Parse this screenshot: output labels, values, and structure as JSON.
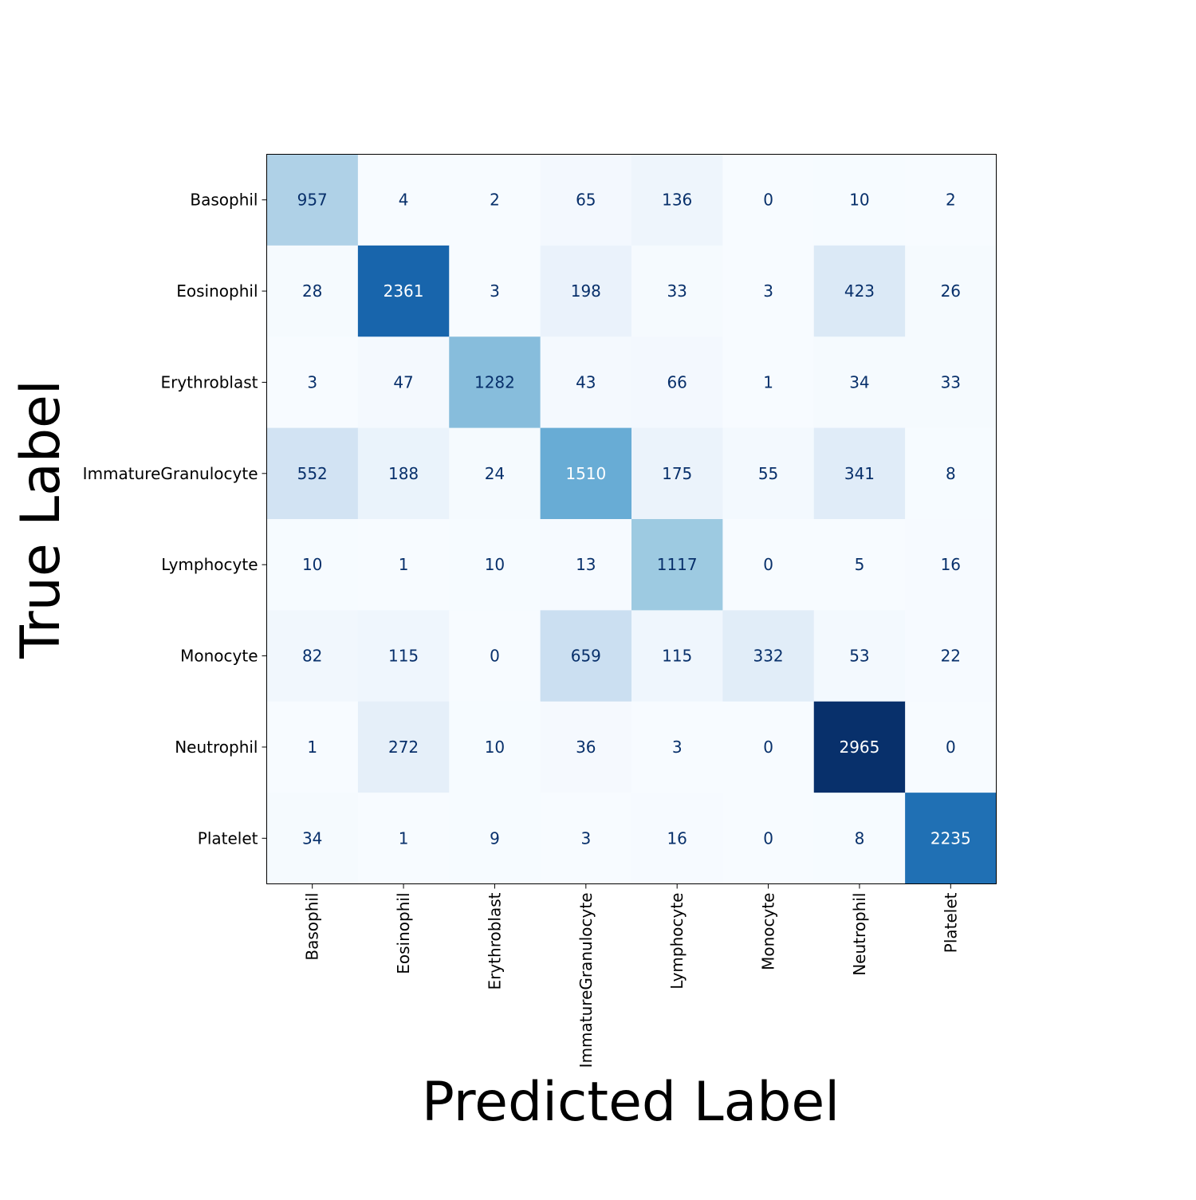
{
  "chart_data": {
    "type": "heatmap",
    "title": "",
    "xlabel": "Predicted Label",
    "ylabel": "True Label",
    "x_categories": [
      "Basophil",
      "Eosinophil",
      "Erythroblast",
      "ImmatureGranulocyte",
      "Lymphocyte",
      "Monocyte",
      "Neutrophil",
      "Platelet"
    ],
    "y_categories": [
      "Basophil",
      "Eosinophil",
      "Erythroblast",
      "ImmatureGranulocyte",
      "Lymphocyte",
      "Monocyte",
      "Neutrophil",
      "Platelet"
    ],
    "values": [
      [
        957,
        4,
        2,
        65,
        136,
        0,
        10,
        2
      ],
      [
        28,
        2361,
        3,
        198,
        33,
        3,
        423,
        26
      ],
      [
        3,
        47,
        1282,
        43,
        66,
        1,
        34,
        33
      ],
      [
        552,
        188,
        24,
        1510,
        175,
        55,
        341,
        8
      ],
      [
        10,
        1,
        10,
        13,
        1117,
        0,
        5,
        16
      ],
      [
        82,
        115,
        0,
        659,
        115,
        332,
        53,
        22
      ],
      [
        1,
        272,
        10,
        36,
        3,
        0,
        2965,
        0
      ],
      [
        34,
        1,
        9,
        3,
        16,
        0,
        8,
        2235
      ]
    ],
    "colormap": "Blues",
    "vmin": 0,
    "vmax": 2965,
    "colorbar": false,
    "grid": false,
    "text_color_dark": "#08306b",
    "text_color_light": "#ffffff"
  }
}
